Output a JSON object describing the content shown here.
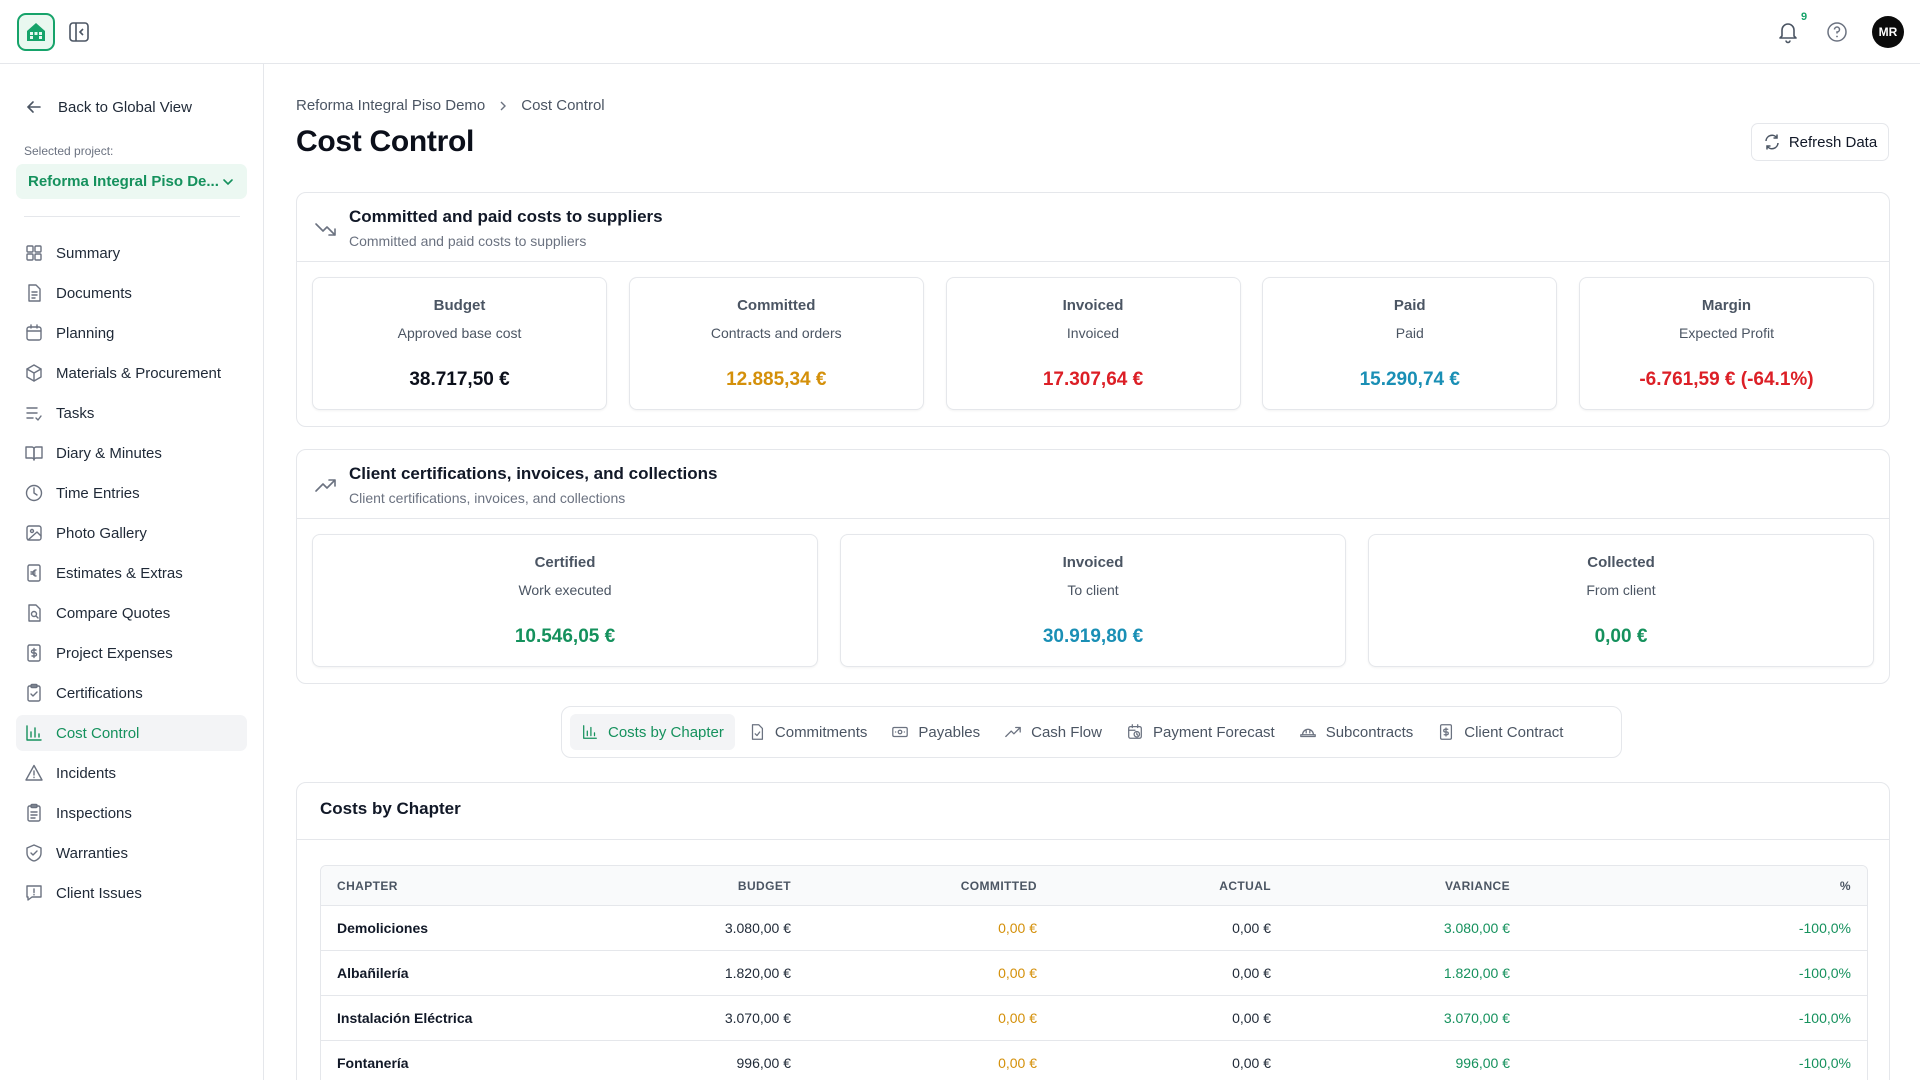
{
  "topbar": {
    "notification_count": "9",
    "avatar_initials": "MR"
  },
  "sidebar": {
    "back_label": "Back to Global View",
    "selected_label": "Selected project:",
    "selected_project": "Reforma Integral Piso De...",
    "items": [
      {
        "label": "Summary",
        "icon": "grid-icon"
      },
      {
        "label": "Documents",
        "icon": "document-icon"
      },
      {
        "label": "Planning",
        "icon": "calendar-icon"
      },
      {
        "label": "Materials & Procurement",
        "icon": "package-icon"
      },
      {
        "label": "Tasks",
        "icon": "list-check-icon"
      },
      {
        "label": "Diary & Minutes",
        "icon": "book-icon"
      },
      {
        "label": "Time Entries",
        "icon": "clock-icon"
      },
      {
        "label": "Photo Gallery",
        "icon": "image-icon"
      },
      {
        "label": "Estimates & Extras",
        "icon": "euro-doc-icon"
      },
      {
        "label": "Compare Quotes",
        "icon": "compare-doc-icon"
      },
      {
        "label": "Project Expenses",
        "icon": "dollar-doc-icon"
      },
      {
        "label": "Certifications",
        "icon": "clipboard-check-icon"
      },
      {
        "label": "Cost Control",
        "icon": "bar-chart-icon"
      },
      {
        "label": "Incidents",
        "icon": "warning-icon"
      },
      {
        "label": "Inspections",
        "icon": "clipboard-list-icon"
      },
      {
        "label": "Warranties",
        "icon": "shield-check-icon"
      },
      {
        "label": "Client Issues",
        "icon": "message-alert-icon"
      }
    ],
    "active_index": 12
  },
  "breadcrumb": {
    "project": "Reforma Integral Piso Demo",
    "current": "Cost Control"
  },
  "page": {
    "title": "Cost Control",
    "refresh_label": "Refresh Data"
  },
  "suppliers": {
    "title": "Committed and paid costs to suppliers",
    "subtitle": "Committed and paid costs to suppliers",
    "stats": [
      {
        "title": "Budget",
        "sub": "Approved base cost",
        "value": "38.717,50 €",
        "color": "#0b0f1a"
      },
      {
        "title": "Committed",
        "sub": "Contracts and orders",
        "value": "12.885,34 €",
        "color": "#d4900a"
      },
      {
        "title": "Invoiced",
        "sub": "Invoiced",
        "value": "17.307,64 €",
        "color": "#dc1f26"
      },
      {
        "title": "Paid",
        "sub": "Paid",
        "value": "15.290,74 €",
        "color": "#1a8fb5"
      },
      {
        "title": "Margin",
        "sub": "Expected Profit",
        "value": "-6.761,59 € (-64.1%)",
        "color": "#dc1f26"
      }
    ]
  },
  "client": {
    "title": "Client certifications, invoices, and collections",
    "subtitle": "Client certifications, invoices, and collections",
    "stats": [
      {
        "title": "Certified",
        "sub": "Work executed",
        "value": "10.546,05 €",
        "color": "#15915d"
      },
      {
        "title": "Invoiced",
        "sub": "To client",
        "value": "30.919,80 €",
        "color": "#1a8fb5"
      },
      {
        "title": "Collected",
        "sub": "From client",
        "value": "0,00 €",
        "color": "#15915d"
      }
    ]
  },
  "tabs": [
    {
      "label": "Costs by Chapter",
      "icon": "bar-chart-icon"
    },
    {
      "label": "Commitments",
      "icon": "file-check-icon"
    },
    {
      "label": "Payables",
      "icon": "banknote-icon"
    },
    {
      "label": "Cash Flow",
      "icon": "trending-up-icon"
    },
    {
      "label": "Payment Forecast",
      "icon": "calendar-clock-icon"
    },
    {
      "label": "Subcontracts",
      "icon": "hard-hat-icon"
    },
    {
      "label": "Client Contract",
      "icon": "dollar-doc-icon"
    }
  ],
  "active_tab": 0,
  "costs_table": {
    "title": "Costs by Chapter",
    "columns": [
      "CHAPTER",
      "BUDGET",
      "COMMITTED",
      "ACTUAL",
      "VARIANCE",
      "%"
    ],
    "rows": [
      {
        "chapter": "Demoliciones",
        "budget": "3.080,00 €",
        "committed": "0,00 €",
        "actual": "0,00 €",
        "variance": "3.080,00 €",
        "pct": "-100,0%"
      },
      {
        "chapter": "Albañilería",
        "budget": "1.820,00 €",
        "committed": "0,00 €",
        "actual": "0,00 €",
        "variance": "1.820,00 €",
        "pct": "-100,0%"
      },
      {
        "chapter": "Instalación Eléctrica",
        "budget": "3.070,00 €",
        "committed": "0,00 €",
        "actual": "0,00 €",
        "variance": "3.070,00 €",
        "pct": "-100,0%"
      },
      {
        "chapter": "Fontanería",
        "budget": "996,00 €",
        "committed": "0,00 €",
        "actual": "0,00 €",
        "variance": "996,00 €",
        "pct": "-100,0%"
      }
    ],
    "committed_color": "#d4900a",
    "variance_color": "#15915d",
    "pct_color": "#15915d"
  },
  "colors": {
    "accent": "#15915d"
  }
}
